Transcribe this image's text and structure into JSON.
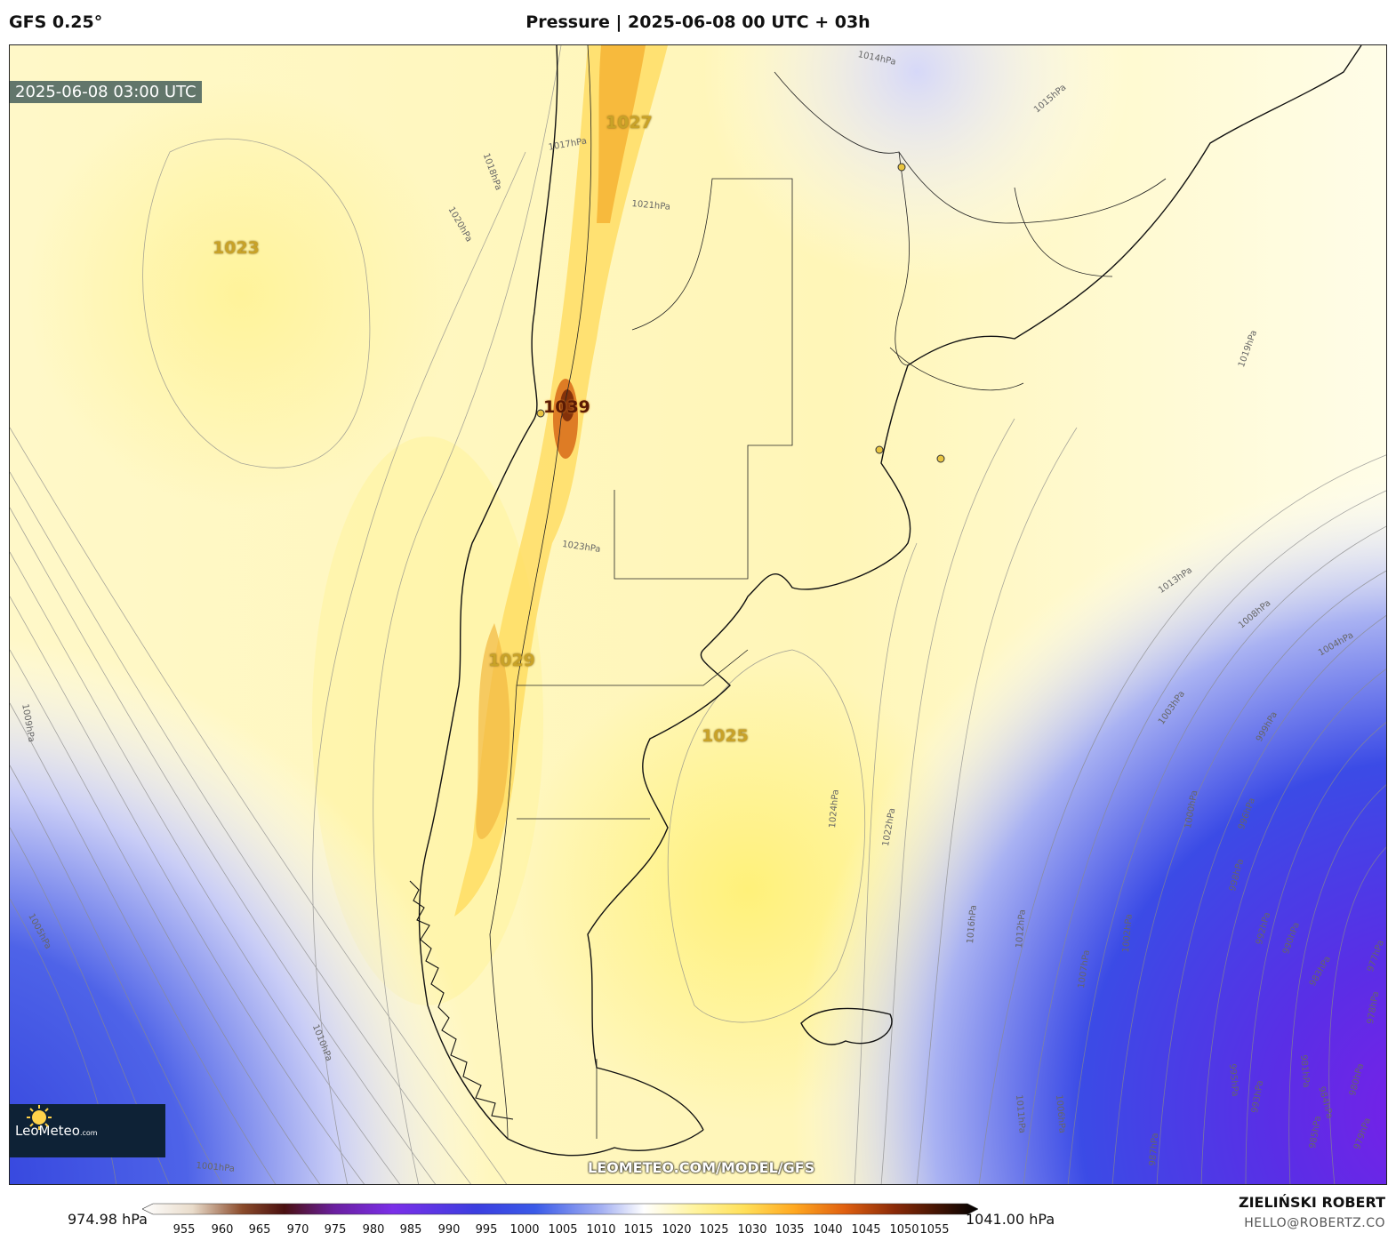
{
  "header": {
    "model": "GFS 0.25°",
    "title": "Pressure | 2025-06-08 00 UTC + 03h"
  },
  "map": {
    "valid_time": "2025-06-08 03:00 UTC",
    "watermark": "LEOMETEO.COM/MODEL/GFS",
    "logo_text": "LeoMeteo",
    "logo_suffix": ".com",
    "high_labels": [
      "1027",
      "1023",
      "1039",
      "1029",
      "1025"
    ],
    "isobar_labels": [
      "1014hPa",
      "1015hPa",
      "1017hPa",
      "1018hPa",
      "1019hPa",
      "1020hPa",
      "1021hPa",
      "1022hPa",
      "1023hPa",
      "1024hPa",
      "1013hPa",
      "1012hPa",
      "1009hPa",
      "1008hPa",
      "1007hPa",
      "1005hPa",
      "1004hPa",
      "1003hPa",
      "1002hPa",
      "1001hPa",
      "1000hPa",
      "1006hPa",
      "1010hPa",
      "1011hPa",
      "1016hPa",
      "999hPa",
      "998hPa",
      "996hPa",
      "995hPa",
      "993hPa",
      "992hPa",
      "990hPa",
      "987hPa",
      "985hPa",
      "984hPa",
      "983hPa",
      "981hPa",
      "980hPa",
      "979hPa",
      "978hPa",
      "977hPa"
    ],
    "colors": {
      "high": "#fff07a",
      "mid": "#fffbe0",
      "low_blue": "#3a3fe0",
      "low_violet": "#6b2be8",
      "coast": "#111111"
    }
  },
  "colorbar": {
    "min_label": "974.98 hPa",
    "max_label": "1041.00 hPa",
    "ticks": [
      "955",
      "960",
      "965",
      "970",
      "975",
      "980",
      "985",
      "990",
      "995",
      "1000",
      "1005",
      "1010",
      "1015",
      "1020",
      "1025",
      "1030",
      "1035",
      "1040",
      "1045",
      "1050",
      "1055"
    ]
  },
  "footer": {
    "author": "ZIELIŃSKI ROBERT",
    "email": "HELLO@ROBERTZ.CO"
  }
}
